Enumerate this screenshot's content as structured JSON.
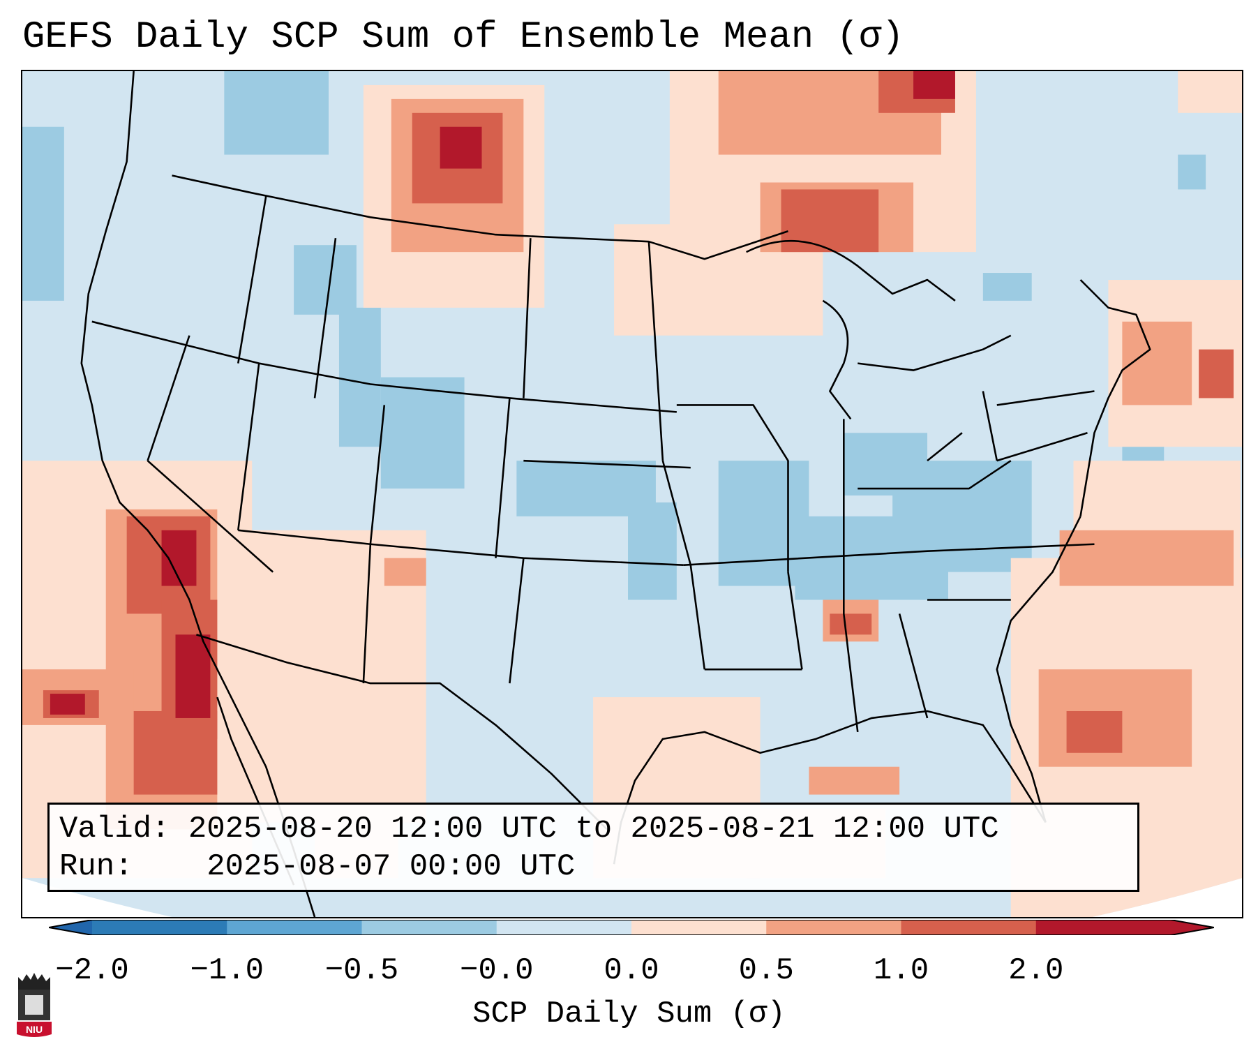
{
  "title": "GEFS Daily SCP Sum of Ensemble Mean (σ)",
  "info": {
    "valid_label": "Valid:",
    "valid_value": "2025-08-20 12:00 UTC to 2025-08-21 12:00 UTC",
    "run_label": "Run:",
    "run_value": "2025-08-07 00:00 UTC"
  },
  "colorbar": {
    "label": "SCP Daily Sum (σ)",
    "ticks": [
      "−2.0",
      "−1.0",
      "−0.5",
      "−0.0",
      "0.0",
      "0.5",
      "1.0",
      "2.0"
    ],
    "colors": [
      "#2c7bb6",
      "#5ea6d3",
      "#9ccbe2",
      "#d2e5f1",
      "#fde0d0",
      "#f2a283",
      "#d6604d",
      "#b2182b"
    ],
    "extend_low_color": "#2166ac",
    "extend_high_color": "#b2182b"
  },
  "map": {
    "background_level": "#d2e5f1",
    "outside_projection": "#ffffff"
  },
  "logo": {
    "text": "NIU"
  }
}
